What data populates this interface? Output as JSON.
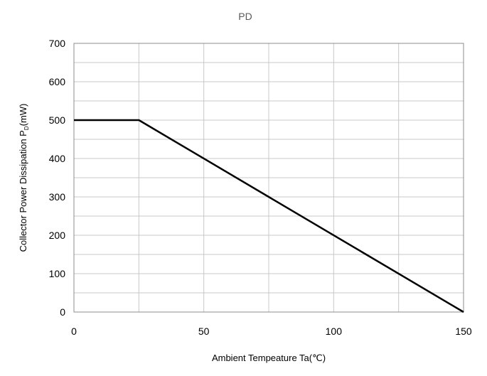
{
  "chart_data": {
    "type": "line",
    "title": "PD",
    "xlabel": "Ambient Tempeature Ta(℃)",
    "ylabel": {
      "main": "Collector Power Dissipation  P",
      "subscript": "D",
      "unit": "(mW)"
    },
    "xlim": [
      0,
      150
    ],
    "ylim": [
      0,
      700
    ],
    "x_ticks": [
      0,
      50,
      100,
      150
    ],
    "y_ticks": [
      0,
      100,
      200,
      300,
      400,
      500,
      600,
      700
    ],
    "x_tick_labels": [
      "0",
      "50",
      "100",
      "150"
    ],
    "y_tick_labels": [
      "0",
      "100",
      "200",
      "300",
      "400",
      "500",
      "600",
      "700"
    ],
    "grid": true,
    "legend": "none",
    "series": [
      {
        "x": [
          0,
          25,
          150
        ],
        "y": [
          500,
          500,
          0
        ],
        "color": "#000000"
      }
    ]
  }
}
